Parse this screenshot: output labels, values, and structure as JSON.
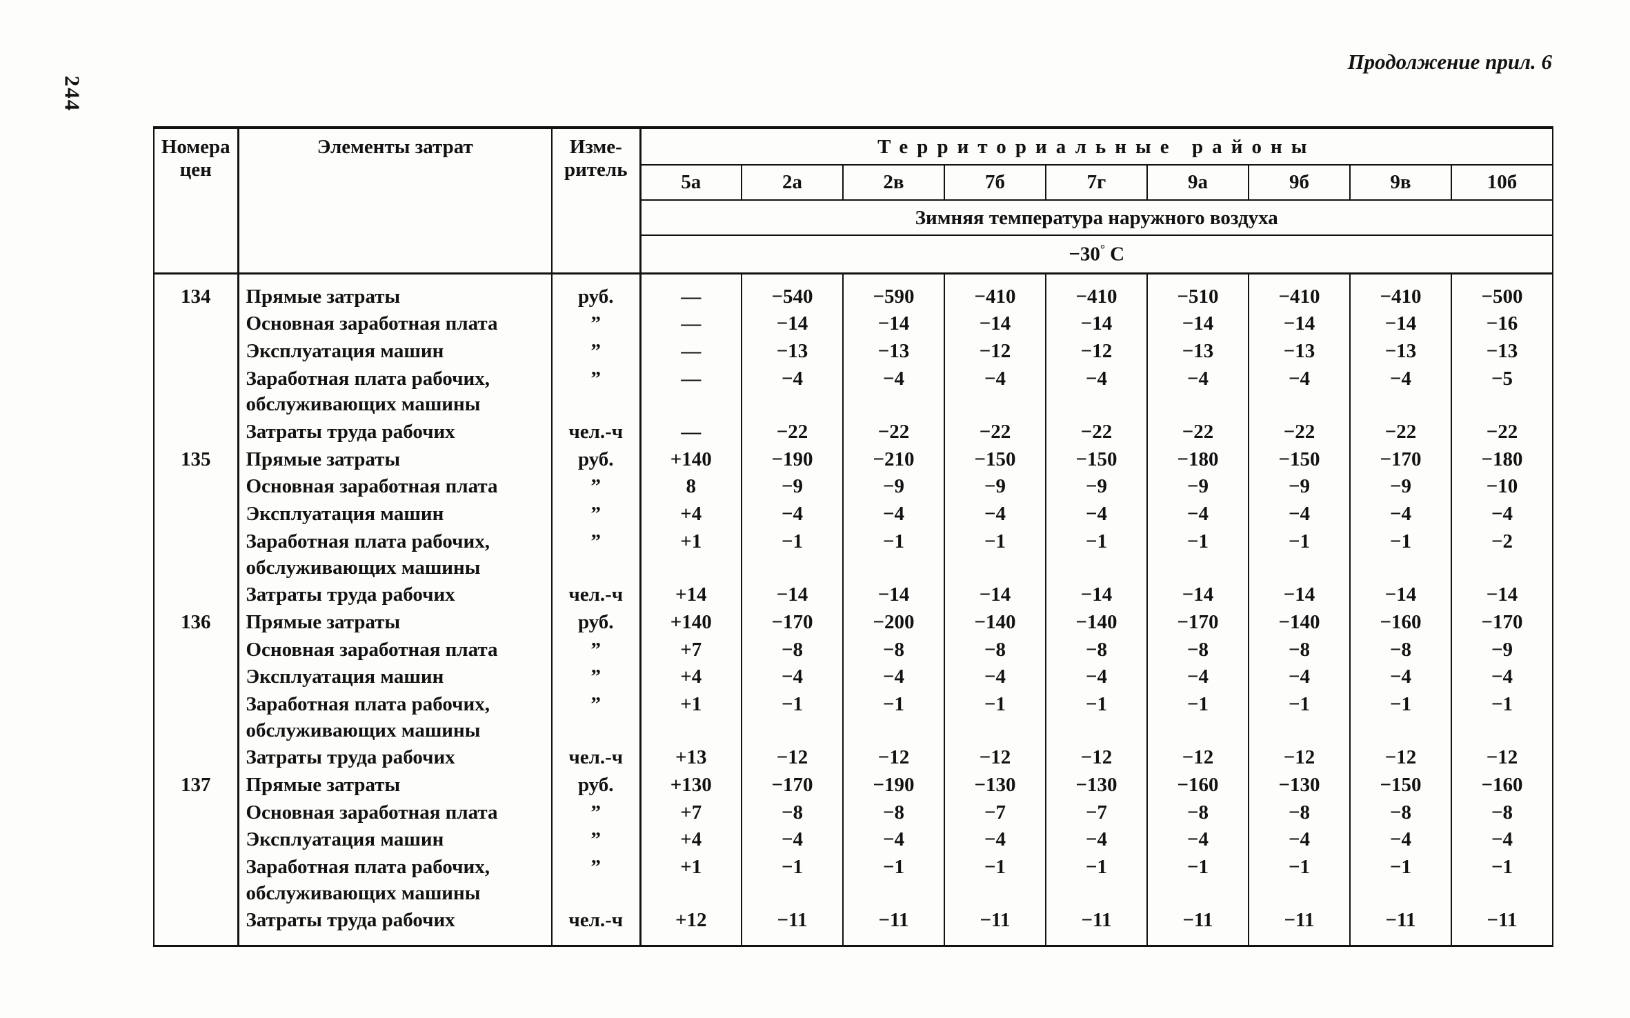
{
  "page": {
    "page_number": "244",
    "continuation_note": "Продолжение прил. 6"
  },
  "table": {
    "header": {
      "col_number": "Номера цен",
      "col_elements": "Элементы затрат",
      "col_unit": "Изме-\nритель",
      "districts_title": "Территориальные районы",
      "district_codes": [
        "5а",
        "2а",
        "2в",
        "7б",
        "7г",
        "9а",
        "9б",
        "9в",
        "10б"
      ],
      "temperature_title": "Зимняя температура наружного воздуха",
      "temperature_value_number": "−30",
      "temperature_value_unit": "С"
    },
    "groups": [
      {
        "number": "134",
        "rows": [
          {
            "label": "Прямые затраты",
            "unit": "руб.",
            "values": [
              "—",
              "−540",
              "−590",
              "−410",
              "−410",
              "−510",
              "−410",
              "−410",
              "−500"
            ]
          },
          {
            "label": "Основная заработная плата",
            "unit": "”",
            "values": [
              "—",
              "−14",
              "−14",
              "−14",
              "−14",
              "−14",
              "−14",
              "−14",
              "−16"
            ]
          },
          {
            "label": "Эксплуатация машин",
            "unit": "”",
            "values": [
              "—",
              "−13",
              "−13",
              "−12",
              "−12",
              "−13",
              "−13",
              "−13",
              "−13"
            ]
          },
          {
            "label": "Заработная плата рабочих, обслуживающих машины",
            "unit": "”",
            "values": [
              "—",
              "−4",
              "−4",
              "−4",
              "−4",
              "−4",
              "−4",
              "−4",
              "−5"
            ]
          },
          {
            "label": "Затраты труда рабочих",
            "unit": "чел.-ч",
            "values": [
              "—",
              "−22",
              "−22",
              "−22",
              "−22",
              "−22",
              "−22",
              "−22",
              "−22"
            ]
          }
        ]
      },
      {
        "number": "135",
        "rows": [
          {
            "label": "Прямые затраты",
            "unit": "руб.",
            "values": [
              "+140",
              "−190",
              "−210",
              "−150",
              "−150",
              "−180",
              "−150",
              "−170",
              "−180"
            ]
          },
          {
            "label": "Основная заработная плата",
            "unit": "”",
            "values": [
              "8",
              "−9",
              "−9",
              "−9",
              "−9",
              "−9",
              "−9",
              "−9",
              "−10"
            ]
          },
          {
            "label": "Эксплуатация машин",
            "unit": "”",
            "values": [
              "+4",
              "−4",
              "−4",
              "−4",
              "−4",
              "−4",
              "−4",
              "−4",
              "−4"
            ]
          },
          {
            "label": "Заработная плата рабочих, обслуживающих машины",
            "unit": "”",
            "values": [
              "+1",
              "−1",
              "−1",
              "−1",
              "−1",
              "−1",
              "−1",
              "−1",
              "−2"
            ]
          },
          {
            "label": "Затраты труда рабочих",
            "unit": "чел.-ч",
            "values": [
              "+14",
              "−14",
              "−14",
              "−14",
              "−14",
              "−14",
              "−14",
              "−14",
              "−14"
            ]
          }
        ]
      },
      {
        "number": "136",
        "rows": [
          {
            "label": "Прямые затраты",
            "unit": "руб.",
            "values": [
              "+140",
              "−170",
              "−200",
              "−140",
              "−140",
              "−170",
              "−140",
              "−160",
              "−170"
            ]
          },
          {
            "label": "Основная заработная плата",
            "unit": "”",
            "values": [
              "+7",
              "−8",
              "−8",
              "−8",
              "−8",
              "−8",
              "−8",
              "−8",
              "−9"
            ]
          },
          {
            "label": "Эксплуатация машин",
            "unit": "”",
            "values": [
              "+4",
              "−4",
              "−4",
              "−4",
              "−4",
              "−4",
              "−4",
              "−4",
              "−4"
            ]
          },
          {
            "label": "Заработная плата рабочих, обслуживающих машины",
            "unit": "”",
            "values": [
              "+1",
              "−1",
              "−1",
              "−1",
              "−1",
              "−1",
              "−1",
              "−1",
              "−1"
            ]
          },
          {
            "label": "Затраты труда рабочих",
            "unit": "чел.-ч",
            "values": [
              "+13",
              "−12",
              "−12",
              "−12",
              "−12",
              "−12",
              "−12",
              "−12",
              "−12"
            ]
          }
        ]
      },
      {
        "number": "137",
        "rows": [
          {
            "label": "Прямые затраты",
            "unit": "руб.",
            "values": [
              "+130",
              "−170",
              "−190",
              "−130",
              "−130",
              "−160",
              "−130",
              "−150",
              "−160"
            ]
          },
          {
            "label": "Основная заработная плата",
            "unit": "”",
            "values": [
              "+7",
              "−8",
              "−8",
              "−7",
              "−7",
              "−8",
              "−8",
              "−8",
              "−8"
            ]
          },
          {
            "label": "Эксплуатация машин",
            "unit": "”",
            "values": [
              "+4",
              "−4",
              "−4",
              "−4",
              "−4",
              "−4",
              "−4",
              "−4",
              "−4"
            ]
          },
          {
            "label": "Заработная плата рабочих, обслуживающих машины",
            "unit": "”",
            "values": [
              "+1",
              "−1",
              "−1",
              "−1",
              "−1",
              "−1",
              "−1",
              "−1",
              "−1"
            ]
          },
          {
            "label": "Затраты труда рабочих",
            "unit": "чел.-ч",
            "values": [
              "+12",
              "−11",
              "−11",
              "−11",
              "−11",
              "−11",
              "−11",
              "−11",
              "−11"
            ]
          }
        ]
      }
    ]
  }
}
